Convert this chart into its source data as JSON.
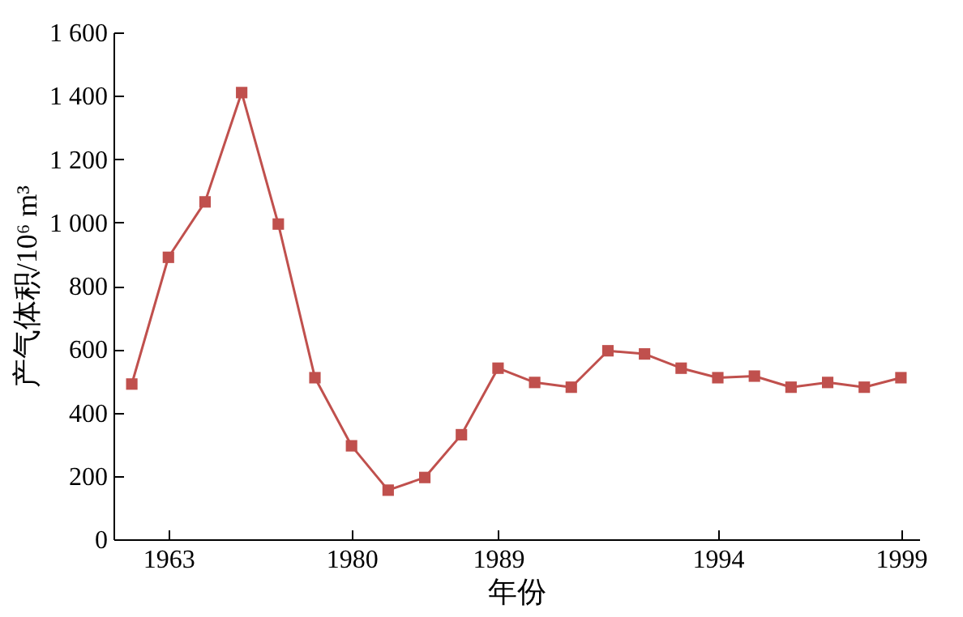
{
  "chart_data": {
    "type": "line",
    "xlabel": "年份",
    "ylabel": "产气体积/10⁶ m³",
    "categories": [
      null,
      "1963",
      null,
      null,
      null,
      null,
      "1980",
      null,
      null,
      null,
      "1989",
      null,
      null,
      null,
      null,
      null,
      "1994",
      null,
      null,
      null,
      null,
      "1999"
    ],
    "series": [
      {
        "color": "#c0504d",
        "values": [
          490,
          890,
          1065,
          1410,
          995,
          510,
          295,
          155,
          195,
          330,
          540,
          495,
          480,
          595,
          585,
          540,
          510,
          515,
          480,
          495,
          480,
          510
        ]
      }
    ],
    "ylim": [
      0,
      1600
    ],
    "yticks": [
      0,
      200,
      400,
      600,
      800,
      {
        "value": 1000,
        "label": "1 000"
      },
      {
        "value": 1200,
        "label": "1 200"
      },
      {
        "value": 1400,
        "label": "1 400"
      },
      {
        "value": 1600,
        "label": "1 600"
      }
    ],
    "grid": false,
    "marker": "square",
    "line_style": "solid"
  }
}
